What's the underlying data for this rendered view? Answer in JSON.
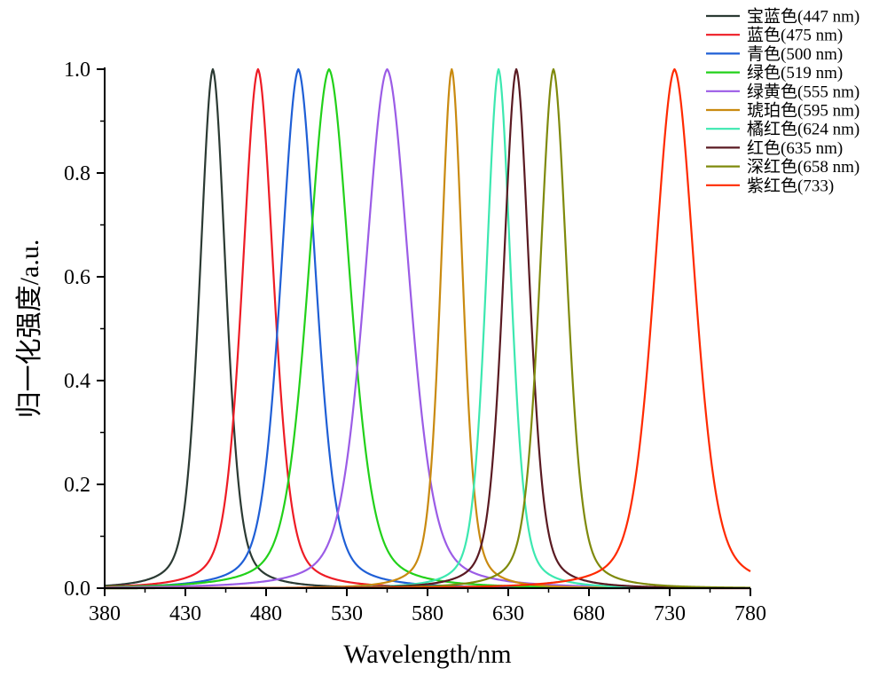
{
  "chart_data": {
    "type": "line",
    "title": "",
    "xlabel": "Wavelength/nm",
    "ylabel": "归一化强度/a.u.",
    "xlim": [
      380,
      780
    ],
    "ylim": [
      0,
      1.0
    ],
    "x_ticks": [
      380,
      430,
      480,
      530,
      580,
      630,
      680,
      730,
      780
    ],
    "y_ticks": [
      0.0,
      0.2,
      0.4,
      0.6,
      0.8,
      1.0
    ],
    "x_tick_labels": [
      "380",
      "430",
      "480",
      "530",
      "580",
      "630",
      "680",
      "730",
      "780"
    ],
    "y_tick_labels": [
      "0.0",
      "0.2",
      "0.4",
      "0.6",
      "0.8",
      "1.0"
    ],
    "grid": false,
    "legend_position": "top-right",
    "series": [
      {
        "name": "宝蓝色(447 nm)",
        "peak": 447,
        "fwhm": 20,
        "color": "#2b3a33"
      },
      {
        "name": "蓝色(475 nm)",
        "peak": 475,
        "fwhm": 24,
        "color": "#ee1c25"
      },
      {
        "name": "青色(500 nm)",
        "peak": 500,
        "fwhm": 27,
        "color": "#1f5fd6"
      },
      {
        "name": "绿色(519 nm)",
        "peak": 519,
        "fwhm": 32,
        "color": "#22d11a"
      },
      {
        "name": "绿黄色(555 nm)",
        "peak": 555,
        "fwhm": 34,
        "color": "#9b5ce6"
      },
      {
        "name": "琥珀色(595 nm)",
        "peak": 595,
        "fwhm": 17,
        "color": "#c98a10"
      },
      {
        "name": "橘红色(624 nm)",
        "peak": 624,
        "fwhm": 19,
        "color": "#3ce8b0"
      },
      {
        "name": "红色(635 nm)",
        "peak": 635,
        "fwhm": 20,
        "color": "#5a1a22"
      },
      {
        "name": "深红色(658 nm)",
        "peak": 658,
        "fwhm": 21,
        "color": "#7f8a0c"
      },
      {
        "name": "紫红色(733)",
        "peak": 733,
        "fwhm": 31,
        "color": "#ff2a00"
      }
    ]
  }
}
